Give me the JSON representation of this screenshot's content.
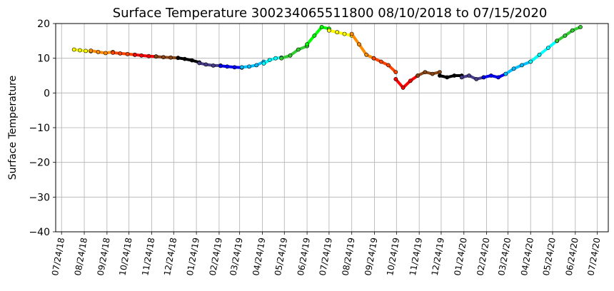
{
  "chart_data": {
    "type": "scatter",
    "title": "Surface Temperature 300234065511800  08/10/2018 to 07/15/2020",
    "xlabel": "",
    "ylabel": "Surface Temperature",
    "ylim": [
      -40,
      20
    ],
    "yticks": [
      -40,
      -30,
      -20,
      -10,
      0,
      10,
      20
    ],
    "xlim": [
      "2018-07-16",
      "2020-08-08"
    ],
    "xticks": [
      "07/24/18",
      "08/24/18",
      "09/24/18",
      "10/24/18",
      "11/24/18",
      "12/24/18",
      "01/24/19",
      "02/24/19",
      "03/24/19",
      "04/24/19",
      "05/24/19",
      "06/24/19",
      "07/24/19",
      "08/24/19",
      "09/24/19",
      "10/24/19",
      "11/24/19",
      "12/24/19",
      "01/24/20",
      "02/24/20",
      "03/24/20",
      "04/24/20",
      "05/24/20",
      "06/24/20",
      "07/24/20"
    ],
    "grid": true,
    "legend": "none",
    "color_cycle": [
      "#ffff00",
      "#ff8c00",
      "#ff4500",
      "#ff0000",
      "#8b4513",
      "#000000",
      "#483d8b",
      "#0000ff",
      "#00bfff",
      "#00ffff",
      "#32cd32",
      "#00ff00"
    ],
    "series": [
      {
        "color": "#ffff00",
        "x": [
          "2018-08-10",
          "2018-08-18",
          "2018-08-26",
          "2018-09-02"
        ],
        "y": [
          12.5,
          12.3,
          12.1,
          12.0
        ]
      },
      {
        "color": "#ff8c00",
        "x": [
          "2018-09-02",
          "2018-09-12",
          "2018-09-22",
          "2018-10-02"
        ],
        "y": [
          12.2,
          11.8,
          11.5,
          11.8
        ]
      },
      {
        "color": "#ff4500",
        "x": [
          "2018-10-02",
          "2018-10-12",
          "2018-10-22",
          "2018-11-01"
        ],
        "y": [
          11.6,
          11.4,
          11.2,
          11.0
        ]
      },
      {
        "color": "#ff0000",
        "x": [
          "2018-11-01",
          "2018-11-10",
          "2018-11-20",
          "2018-11-30"
        ],
        "y": [
          11.0,
          10.8,
          10.6,
          10.5
        ]
      },
      {
        "color": "#8b4513",
        "x": [
          "2018-11-30",
          "2018-12-10",
          "2018-12-20",
          "2018-12-30"
        ],
        "y": [
          10.5,
          10.3,
          10.2,
          10.1
        ]
      },
      {
        "color": "#000000",
        "x": [
          "2018-12-30",
          "2019-01-08",
          "2019-01-18",
          "2019-01-28"
        ],
        "y": [
          10.1,
          9.8,
          9.4,
          8.8
        ]
      },
      {
        "color": "#483d8b",
        "x": [
          "2019-01-28",
          "2019-02-06",
          "2019-02-16",
          "2019-02-26"
        ],
        "y": [
          8.6,
          8.2,
          7.9,
          7.9
        ]
      },
      {
        "color": "#0000ff",
        "x": [
          "2019-02-26",
          "2019-03-07",
          "2019-03-17",
          "2019-03-27"
        ],
        "y": [
          7.8,
          7.6,
          7.4,
          7.3
        ]
      },
      {
        "color": "#00bfff",
        "x": [
          "2019-03-27",
          "2019-04-06",
          "2019-04-16",
          "2019-04-26"
        ],
        "y": [
          7.4,
          7.6,
          8.0,
          9.0
        ]
      },
      {
        "color": "#00ffff",
        "x": [
          "2019-04-26",
          "2019-05-04",
          "2019-05-12",
          "2019-05-20"
        ],
        "y": [
          8.5,
          9.5,
          10.0,
          10.2
        ]
      },
      {
        "color": "#32cd32",
        "x": [
          "2019-05-20",
          "2019-06-01",
          "2019-06-12",
          "2019-06-24"
        ],
        "y": [
          10.0,
          10.8,
          12.5,
          13.5
        ]
      },
      {
        "color": "#00ff00",
        "x": [
          "2019-06-24",
          "2019-07-04",
          "2019-07-14",
          "2019-07-24"
        ],
        "y": [
          14.0,
          16.5,
          19.0,
          18.5
        ]
      },
      {
        "color": "#ffff00",
        "x": [
          "2019-07-24",
          "2019-08-04",
          "2019-08-14",
          "2019-08-24"
        ],
        "y": [
          18.0,
          17.5,
          17.0,
          16.5
        ]
      },
      {
        "color": "#ff8c00",
        "x": [
          "2019-08-24",
          "2019-09-03",
          "2019-09-13",
          "2019-09-23"
        ],
        "y": [
          17.0,
          14.0,
          11.0,
          10.0
        ]
      },
      {
        "color": "#ff4500",
        "x": [
          "2019-09-23",
          "2019-10-03",
          "2019-10-13",
          "2019-10-23"
        ],
        "y": [
          10.0,
          9.0,
          8.0,
          6.0
        ]
      },
      {
        "color": "#ff0000",
        "x": [
          "2019-10-23",
          "2019-11-02",
          "2019-11-12",
          "2019-11-22"
        ],
        "y": [
          4.0,
          1.5,
          3.5,
          5.0
        ]
      },
      {
        "color": "#8b4513",
        "x": [
          "2019-11-22",
          "2019-12-02",
          "2019-12-12",
          "2019-12-22"
        ],
        "y": [
          5.0,
          6.0,
          5.5,
          6.0
        ]
      },
      {
        "color": "#000000",
        "x": [
          "2019-12-22",
          "2020-01-01",
          "2020-01-11",
          "2020-01-21"
        ],
        "y": [
          5.0,
          4.5,
          5.0,
          5.0
        ]
      },
      {
        "color": "#483d8b",
        "x": [
          "2020-01-21",
          "2020-01-31",
          "2020-02-10",
          "2020-02-20"
        ],
        "y": [
          4.5,
          5.0,
          4.0,
          4.5
        ]
      },
      {
        "color": "#0000ff",
        "x": [
          "2020-02-20",
          "2020-03-01",
          "2020-03-11",
          "2020-03-21"
        ],
        "y": [
          4.5,
          5.0,
          4.5,
          5.5
        ]
      },
      {
        "color": "#00bfff",
        "x": [
          "2020-03-21",
          "2020-04-01",
          "2020-04-12",
          "2020-04-24"
        ],
        "y": [
          5.5,
          7.0,
          8.0,
          9.0
        ]
      },
      {
        "color": "#00ffff",
        "x": [
          "2020-04-24",
          "2020-05-06",
          "2020-05-18",
          "2020-05-30"
        ],
        "y": [
          9.0,
          11.0,
          13.0,
          15.0
        ]
      },
      {
        "color": "#32cd32",
        "x": [
          "2020-05-30",
          "2020-06-10",
          "2020-06-20",
          "2020-07-01"
        ],
        "y": [
          15.0,
          16.5,
          18.0,
          19.0
        ]
      }
    ]
  }
}
